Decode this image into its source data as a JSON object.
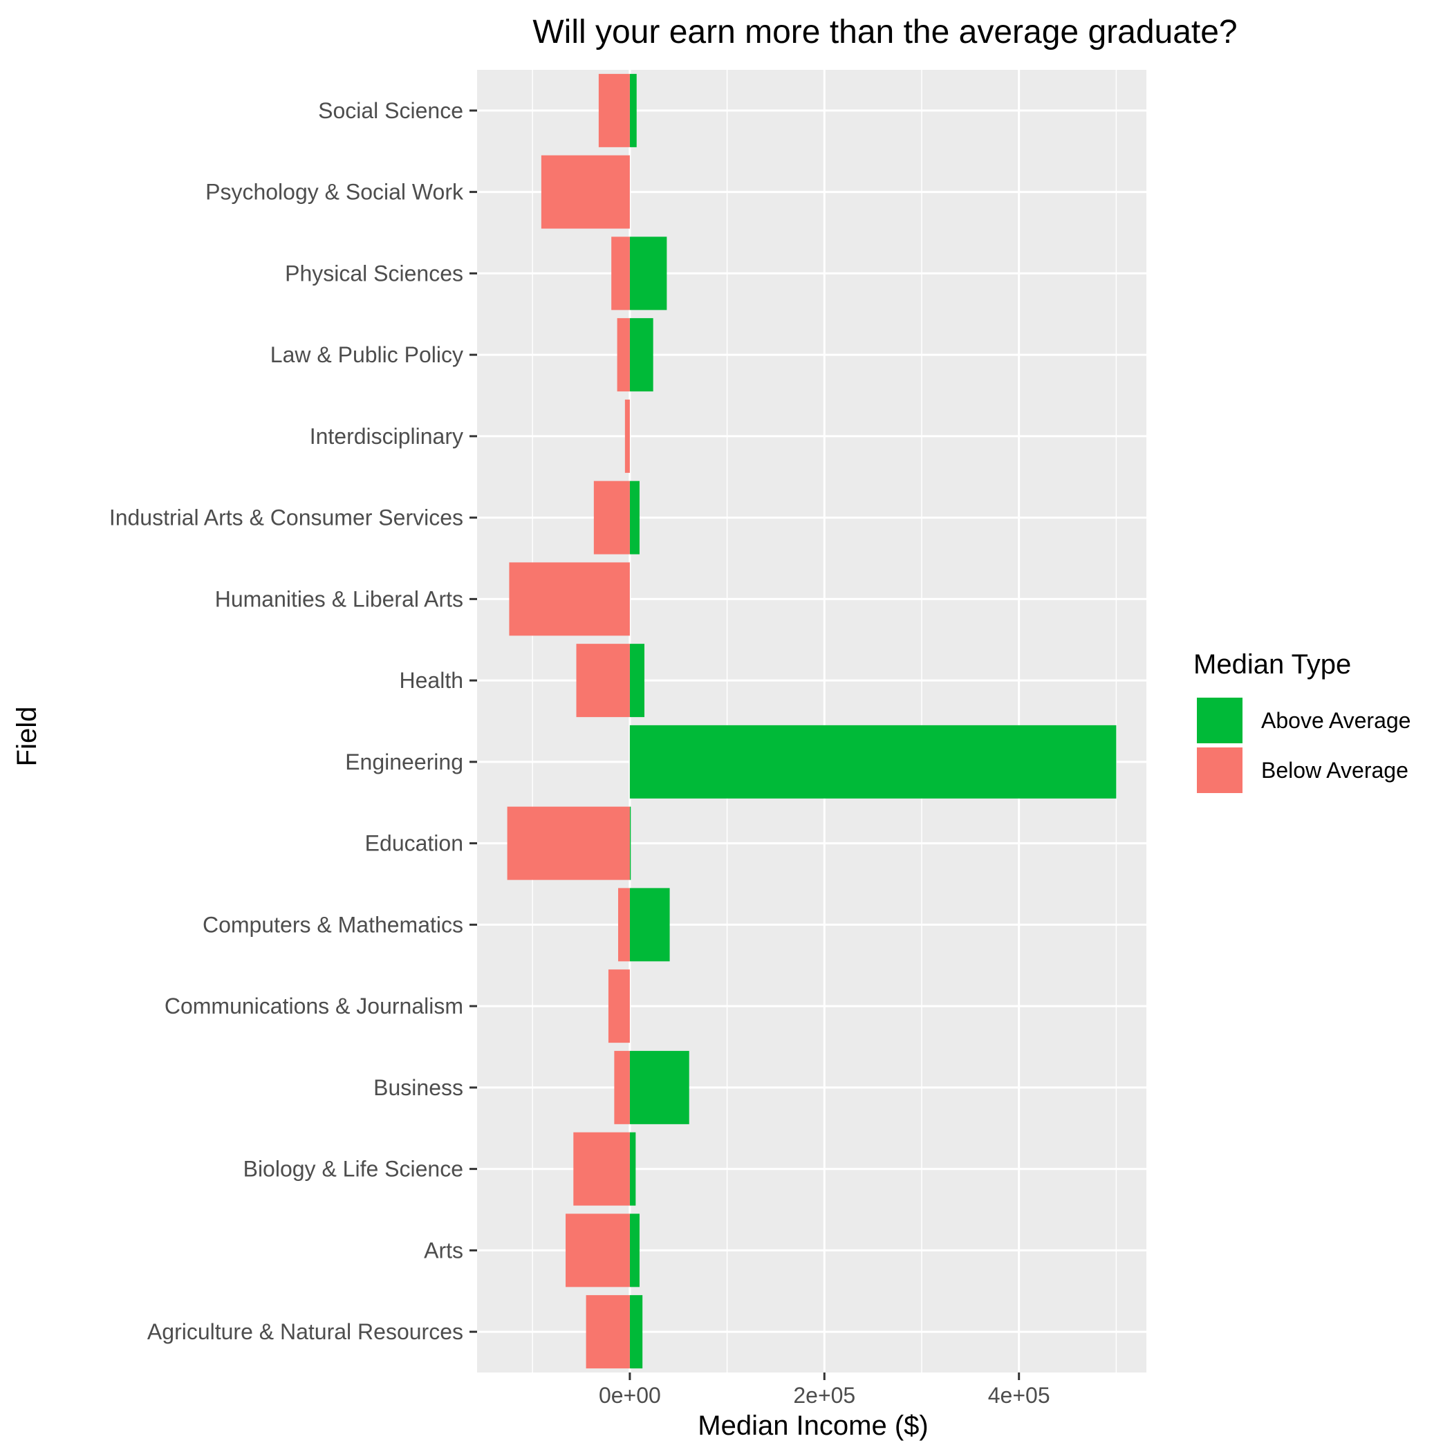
{
  "chart_data": {
    "type": "bar",
    "orientation": "horizontal",
    "title": "Will your earn more than the average graduate?",
    "xlabel": "Median Income ($)",
    "ylabel": "Field",
    "xlim": [
      -157000,
      531000
    ],
    "x_ticks": [
      0,
      200000,
      400000
    ],
    "x_tick_labels": [
      "0e+00",
      "2e+05",
      "4e+05"
    ],
    "grid": true,
    "legend": {
      "title": "Median Type",
      "placement": "right",
      "entries": [
        {
          "label": "Above Average",
          "color": "#00BA38"
        },
        {
          "label": "Below Average",
          "color": "#F8766D"
        }
      ]
    },
    "categories": [
      "Agriculture & Natural Resources",
      "Arts",
      "Biology & Life Science",
      "Business",
      "Communications & Journalism",
      "Computers & Mathematics",
      "Education",
      "Engineering",
      "Health",
      "Humanities & Liberal Arts",
      "Industrial Arts & Consumer Services",
      "Interdisciplinary",
      "Law & Public Policy",
      "Physical Sciences",
      "Psychology & Social Work",
      "Social Science"
    ],
    "series": [
      {
        "name": "Above Average",
        "color": "#00BA38",
        "values": [
          13000,
          10000,
          6000,
          61000,
          0,
          41000,
          1000,
          500000,
          15000,
          0,
          10000,
          0,
          24000,
          38000,
          0,
          7000
        ]
      },
      {
        "name": "Below Average",
        "color": "#F8766D",
        "values": [
          -45000,
          -66000,
          -58000,
          -16000,
          -22000,
          -12000,
          -126000,
          0,
          -55000,
          -124000,
          -37000,
          -5000,
          -13000,
          -19000,
          -91000,
          -32000
        ]
      }
    ]
  }
}
